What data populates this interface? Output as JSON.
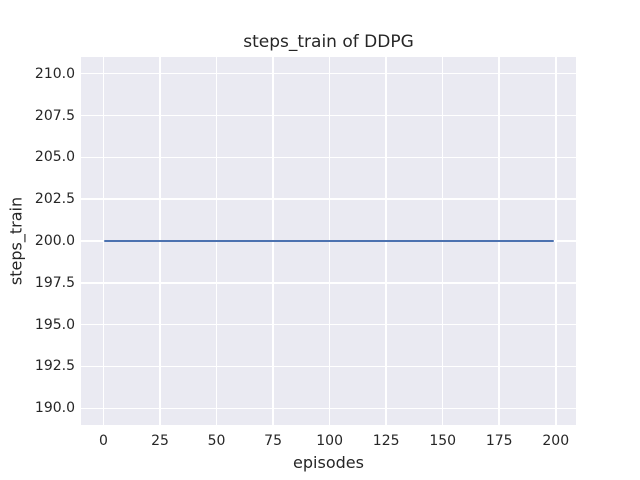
{
  "figure": {
    "background": "#ffffff"
  },
  "chart_data": {
    "type": "line",
    "title": "steps_train of DDPG",
    "xlabel": "episodes",
    "ylabel": "steps_train",
    "x_ticks": {
      "values": [
        0,
        25,
        50,
        75,
        100,
        125,
        150,
        175,
        200
      ],
      "labels": [
        "0",
        "25",
        "50",
        "75",
        "100",
        "125",
        "150",
        "175",
        "200"
      ]
    },
    "y_ticks": {
      "values": [
        210.0,
        207.5,
        205.0,
        202.5,
        200.0,
        197.5,
        195.0,
        192.5,
        190.0
      ],
      "labels": [
        "210.0",
        "207.5",
        "205.0",
        "202.5",
        "200.0",
        "197.5",
        "195.0",
        "192.5",
        "190.0"
      ]
    },
    "xlim": [
      -9.95,
      208.95
    ],
    "ylim": [
      189.0,
      211.0
    ],
    "grid": true,
    "legend": "none",
    "style": "seaborn-darkgrid",
    "plot_background": "#eaeaf2",
    "grid_color": "#ffffff",
    "text_color": "#262626",
    "series": [
      {
        "name": "steps_train",
        "color": "#4c72b0",
        "x": [
          0,
          199
        ],
        "y": [
          200,
          200
        ]
      }
    ]
  }
}
